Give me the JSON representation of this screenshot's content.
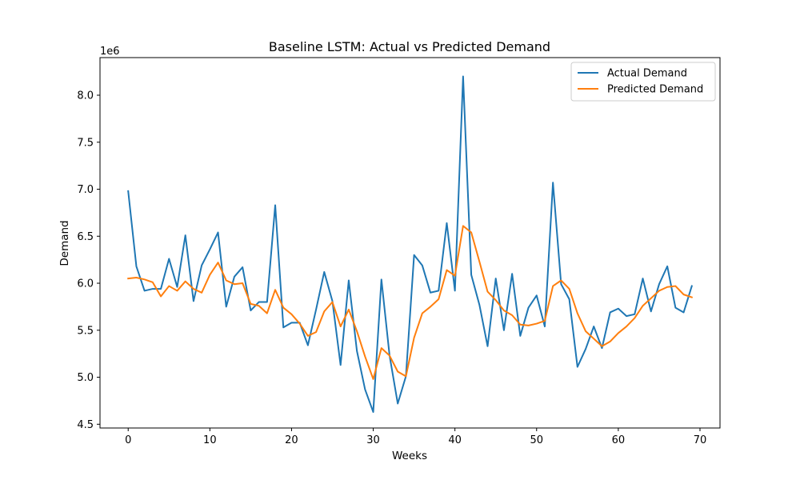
{
  "chart_data": {
    "type": "line",
    "title": "Baseline LSTM: Actual vs Predicted Demand",
    "xlabel": "Weeks",
    "ylabel": "Demand",
    "y_offset_label": "1e6",
    "y_scale": 1000000,
    "xlim": [
      -3.45,
      72.45
    ],
    "ylim": [
      4.46,
      8.4
    ],
    "x_ticks": [
      0,
      10,
      20,
      30,
      40,
      50,
      60,
      70
    ],
    "y_ticks": [
      4.5,
      5.0,
      5.5,
      6.0,
      6.5,
      7.0,
      7.5,
      8.0
    ],
    "grid": false,
    "legend_position": "top-right",
    "x": [
      0,
      1,
      2,
      3,
      4,
      5,
      6,
      7,
      8,
      9,
      10,
      11,
      12,
      13,
      14,
      15,
      16,
      17,
      18,
      19,
      20,
      21,
      22,
      23,
      24,
      25,
      26,
      27,
      28,
      29,
      30,
      31,
      32,
      33,
      34,
      35,
      36,
      37,
      38,
      39,
      40,
      41,
      42,
      43,
      44,
      45,
      46,
      47,
      48,
      49,
      50,
      51,
      52,
      53,
      54,
      55,
      56,
      57,
      58,
      59,
      60,
      61,
      62,
      63,
      64,
      65,
      66,
      67,
      68,
      69
    ],
    "series": [
      {
        "name": "Actual Demand",
        "color": "#1f77b4",
        "values": [
          6.98,
          6.18,
          5.92,
          5.94,
          5.94,
          6.26,
          5.96,
          6.51,
          5.81,
          6.19,
          6.36,
          6.54,
          5.75,
          6.07,
          6.17,
          5.71,
          5.8,
          5.8,
          6.83,
          5.53,
          5.58,
          5.58,
          5.34,
          5.72,
          6.12,
          5.81,
          5.13,
          6.03,
          5.28,
          4.87,
          4.63,
          6.04,
          5.23,
          4.72,
          5.01,
          6.3,
          6.19,
          5.9,
          5.92,
          6.64,
          5.92,
          8.2,
          6.09,
          5.77,
          5.33,
          6.05,
          5.5,
          6.1,
          5.44,
          5.74,
          5.87,
          5.54,
          7.07,
          5.99,
          5.83,
          5.11,
          5.3,
          5.54,
          5.31,
          5.69,
          5.73,
          5.65,
          5.67,
          6.05,
          5.7,
          5.99,
          6.18,
          5.74,
          5.69,
          5.97
        ]
      },
      {
        "name": "Predicted Demand",
        "color": "#ff7f0e",
        "values": [
          6.05,
          6.06,
          6.04,
          6.01,
          5.86,
          5.97,
          5.92,
          6.02,
          5.94,
          5.9,
          6.09,
          6.22,
          6.03,
          5.99,
          6.0,
          5.78,
          5.76,
          5.68,
          5.93,
          5.74,
          5.67,
          5.57,
          5.44,
          5.48,
          5.7,
          5.8,
          5.54,
          5.72,
          5.49,
          5.22,
          4.98,
          5.31,
          5.23,
          5.06,
          5.01,
          5.42,
          5.68,
          5.75,
          5.83,
          6.14,
          6.08,
          6.61,
          6.54,
          6.23,
          5.91,
          5.82,
          5.71,
          5.66,
          5.56,
          5.55,
          5.57,
          5.6,
          5.97,
          6.03,
          5.94,
          5.68,
          5.49,
          5.41,
          5.33,
          5.38,
          5.47,
          5.54,
          5.63,
          5.76,
          5.84,
          5.92,
          5.96,
          5.97,
          5.88,
          5.85
        ]
      }
    ]
  }
}
